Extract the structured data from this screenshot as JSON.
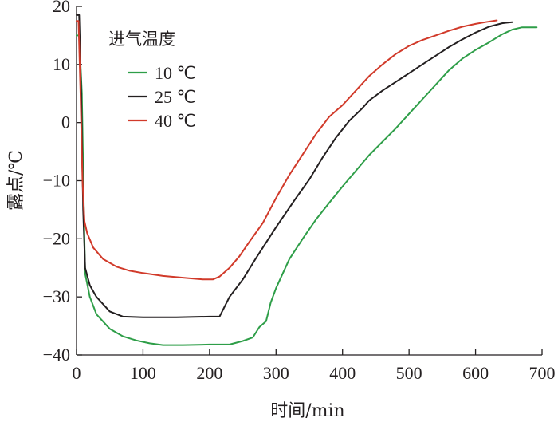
{
  "chart_data": {
    "type": "line",
    "title": "",
    "xlabel": "时间/min",
    "ylabel": "露点/℃",
    "xlim": [
      0,
      700
    ],
    "ylim": [
      -40,
      20
    ],
    "xticks": [
      0,
      100,
      200,
      300,
      400,
      500,
      600,
      700
    ],
    "yticks": [
      -40,
      -30,
      -20,
      -10,
      0,
      10,
      20
    ],
    "xtick_labels": [
      "0",
      "100",
      "200",
      "300",
      "400",
      "500",
      "600",
      "700"
    ],
    "ytick_labels": [
      "−40",
      "−30",
      "−20",
      "−10",
      "0",
      "10",
      "20"
    ],
    "grid": false,
    "legend": {
      "title": "进气温度",
      "position": "top-left"
    },
    "series": [
      {
        "name": "10 ℃",
        "color": "#2e9e48",
        "points": [
          [
            0,
            15
          ],
          [
            4,
            15
          ],
          [
            8,
            5
          ],
          [
            11,
            -15
          ],
          [
            13,
            -26
          ],
          [
            20,
            -30
          ],
          [
            30,
            -33
          ],
          [
            50,
            -35.5
          ],
          [
            70,
            -36.8
          ],
          [
            90,
            -37.5
          ],
          [
            110,
            -38
          ],
          [
            130,
            -38.3
          ],
          [
            160,
            -38.3
          ],
          [
            200,
            -38.2
          ],
          [
            230,
            -38.2
          ],
          [
            250,
            -37.6
          ],
          [
            265,
            -37
          ],
          [
            275,
            -35.2
          ],
          [
            285,
            -34.2
          ],
          [
            292,
            -31
          ],
          [
            300,
            -28.5
          ],
          [
            320,
            -23.5
          ],
          [
            340,
            -20
          ],
          [
            360,
            -16.7
          ],
          [
            380,
            -13.8
          ],
          [
            400,
            -11
          ],
          [
            420,
            -8.3
          ],
          [
            440,
            -5.6
          ],
          [
            460,
            -3.3
          ],
          [
            480,
            -1
          ],
          [
            500,
            1.5
          ],
          [
            520,
            4
          ],
          [
            540,
            6.5
          ],
          [
            560,
            9
          ],
          [
            580,
            11
          ],
          [
            600,
            12.5
          ],
          [
            620,
            13.8
          ],
          [
            640,
            15.2
          ],
          [
            655,
            16
          ],
          [
            670,
            16.4
          ],
          [
            680,
            16.4
          ],
          [
            692,
            16.4
          ]
        ]
      },
      {
        "name": "25 ℃",
        "color": "#231f20",
        "points": [
          [
            0,
            18.5
          ],
          [
            4,
            18.5
          ],
          [
            7,
            5
          ],
          [
            10,
            -15
          ],
          [
            13,
            -25
          ],
          [
            20,
            -28
          ],
          [
            30,
            -30
          ],
          [
            50,
            -32.5
          ],
          [
            70,
            -33.4
          ],
          [
            100,
            -33.5
          ],
          [
            150,
            -33.5
          ],
          [
            200,
            -33.4
          ],
          [
            215,
            -33.4
          ],
          [
            230,
            -30
          ],
          [
            250,
            -27
          ],
          [
            270,
            -23.3
          ],
          [
            300,
            -18
          ],
          [
            330,
            -13
          ],
          [
            350,
            -9.8
          ],
          [
            370,
            -6
          ],
          [
            390,
            -2.6
          ],
          [
            410,
            0.3
          ],
          [
            430,
            2.5
          ],
          [
            440,
            3.8
          ],
          [
            460,
            5.5
          ],
          [
            480,
            7
          ],
          [
            500,
            8.5
          ],
          [
            520,
            10
          ],
          [
            540,
            11.5
          ],
          [
            560,
            13
          ],
          [
            580,
            14.3
          ],
          [
            600,
            15.5
          ],
          [
            620,
            16.5
          ],
          [
            640,
            17.1
          ],
          [
            655,
            17.3
          ]
        ]
      },
      {
        "name": "40 ℃",
        "color": "#d13a2a",
        "points": [
          [
            0,
            17.5
          ],
          [
            3,
            17.5
          ],
          [
            6,
            5
          ],
          [
            9,
            -10
          ],
          [
            12,
            -17
          ],
          [
            16,
            -19
          ],
          [
            25,
            -21.5
          ],
          [
            40,
            -23.5
          ],
          [
            60,
            -24.8
          ],
          [
            80,
            -25.5
          ],
          [
            100,
            -25.9
          ],
          [
            130,
            -26.4
          ],
          [
            160,
            -26.7
          ],
          [
            190,
            -27
          ],
          [
            205,
            -27
          ],
          [
            215,
            -26.5
          ],
          [
            230,
            -25
          ],
          [
            245,
            -23
          ],
          [
            260,
            -20.5
          ],
          [
            280,
            -17.3
          ],
          [
            300,
            -13
          ],
          [
            320,
            -9
          ],
          [
            340,
            -5.5
          ],
          [
            360,
            -2
          ],
          [
            380,
            1
          ],
          [
            400,
            3
          ],
          [
            420,
            5.5
          ],
          [
            440,
            8
          ],
          [
            460,
            10
          ],
          [
            480,
            11.8
          ],
          [
            500,
            13.2
          ],
          [
            520,
            14.2
          ],
          [
            540,
            15
          ],
          [
            560,
            15.8
          ],
          [
            580,
            16.5
          ],
          [
            600,
            17
          ],
          [
            615,
            17.3
          ],
          [
            632,
            17.6
          ]
        ]
      }
    ]
  }
}
